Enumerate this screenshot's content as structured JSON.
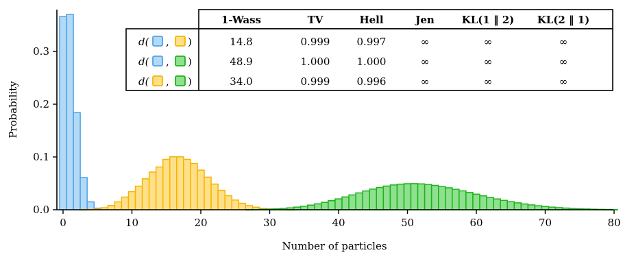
{
  "chart_data": {
    "type": "bar",
    "xlabel": "Number of particles",
    "ylabel": "Probability",
    "xlim": [
      -1,
      80
    ],
    "ylim": [
      0,
      0.38
    ],
    "xticks": [
      0,
      10,
      20,
      30,
      40,
      50,
      60,
      70,
      80
    ],
    "yticks": [
      0.0,
      0.1,
      0.2,
      0.3
    ],
    "ytick_labels": [
      "0.0",
      "0.1",
      "0.2",
      "0.3"
    ],
    "colors": {
      "blue_fill": "#b3d9f7",
      "blue_stroke": "#4da3e6",
      "yellow_fill": "#ffe08a",
      "yellow_stroke": "#f5b400",
      "green_fill": "#8fe08f",
      "green_stroke": "#1db31d"
    },
    "series": [
      {
        "key": "blue",
        "start": 0,
        "values": [
          0.366,
          0.37,
          0.184,
          0.061,
          0.015,
          0.003,
          0.001
        ]
      },
      {
        "key": "yellow",
        "start": 3,
        "values": [
          0.0002,
          0.0005,
          0.0015,
          0.0038,
          0.0081,
          0.0149,
          0.024,
          0.0343,
          0.0447,
          0.0586,
          0.0714,
          0.081,
          0.0954,
          0.1003,
          0.1003,
          0.0956,
          0.0876,
          0.0751,
          0.0618,
          0.0487,
          0.0368,
          0.0266,
          0.0184,
          0.0122,
          0.0078,
          0.0048,
          0.0028,
          0.0016,
          0.0009,
          0.0005,
          0.0002
        ]
      },
      {
        "key": "green",
        "start": 27,
        "values": [
          0.0003,
          0.0005,
          0.0008,
          0.0012,
          0.0018,
          0.0026,
          0.0036,
          0.005,
          0.0067,
          0.0088,
          0.0112,
          0.014,
          0.0172,
          0.0206,
          0.0243,
          0.0281,
          0.0319,
          0.0356,
          0.0391,
          0.0422,
          0.0449,
          0.047,
          0.0485,
          0.0493,
          0.0495,
          0.049,
          0.0479,
          0.0462,
          0.0441,
          0.0416,
          0.0388,
          0.0358,
          0.0327,
          0.0295,
          0.0264,
          0.0234,
          0.0205,
          0.0178,
          0.0153,
          0.0131,
          0.011,
          0.0092,
          0.0076,
          0.0062,
          0.005,
          0.004,
          0.0032,
          0.0025,
          0.0019,
          0.0015,
          0.0011,
          0.0008,
          0.0006,
          0.0004
        ]
      }
    ]
  },
  "table": {
    "headers": [
      "1-Wass",
      "TV",
      "Hell",
      "Jen",
      "KL(1 ‖ 2)",
      "KL(2 ‖ 1)"
    ],
    "rows": [
      {
        "label_prefix": "d(",
        "label_sep": ",",
        "label_suffix": ")",
        "colors": [
          "blue",
          "yellow"
        ],
        "cells": [
          "14.8",
          "0.999",
          "0.997",
          "∞",
          "∞",
          "∞"
        ]
      },
      {
        "label_prefix": "d(",
        "label_sep": ",",
        "label_suffix": ")",
        "colors": [
          "blue",
          "green"
        ],
        "cells": [
          "48.9",
          "1.000",
          "1.000",
          "∞",
          "∞",
          "∞"
        ]
      },
      {
        "label_prefix": "d(",
        "label_sep": ",",
        "label_suffix": ")",
        "colors": [
          "yellow",
          "green"
        ],
        "cells": [
          "34.0",
          "0.999",
          "0.996",
          "∞",
          "∞",
          "∞"
        ]
      }
    ]
  }
}
